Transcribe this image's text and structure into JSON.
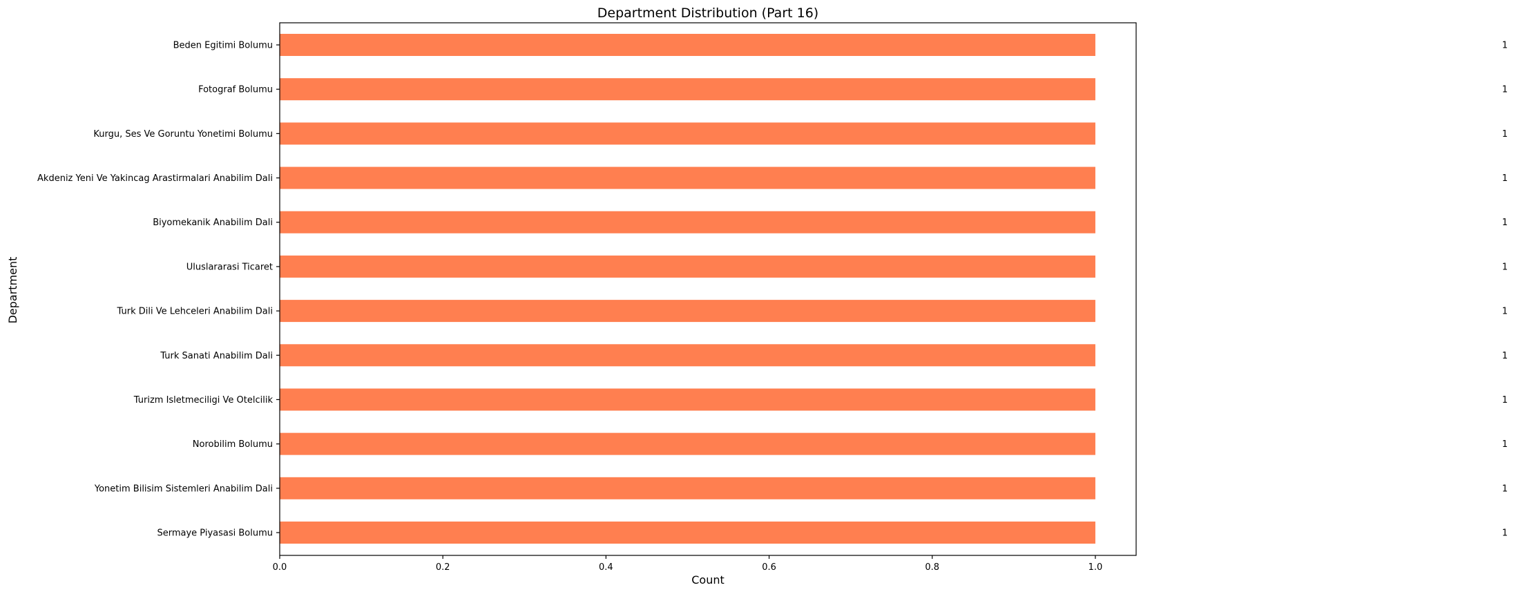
{
  "chart_data": {
    "type": "bar",
    "orientation": "horizontal",
    "title": "Department Distribution (Part 16)",
    "xlabel": "Count",
    "ylabel": "Department",
    "xlim": [
      0,
      1.05
    ],
    "xticks": [
      "0.0",
      "0.2",
      "0.4",
      "0.6",
      "0.8",
      "1.0"
    ],
    "categories": [
      "Beden Egitimi Bolumu",
      "Fotograf Bolumu",
      "Kurgu, Ses Ve Goruntu Yonetimi Bolumu",
      "Akdeniz Yeni Ve Yakincag Arastirmalari Anabilim Dali",
      "Biyomekanik Anabilim Dali",
      "Uluslararasi Ticaret",
      "Turk Dili Ve Lehceleri Anabilim Dali",
      "Turk Sanati Anabilim Dali",
      "Turizm Isletmeciligi Ve Otelcilik",
      "Norobilim Bolumu",
      "Yonetim Bilisim Sistemleri Anabilim Dali",
      "Sermaye Piyasasi Bolumu"
    ],
    "values": [
      1,
      1,
      1,
      1,
      1,
      1,
      1,
      1,
      1,
      1,
      1,
      1
    ],
    "value_labels": [
      "1",
      "1",
      "1",
      "1",
      "1",
      "1",
      "1",
      "1",
      "1",
      "1",
      "1",
      "1"
    ],
    "bar_color": "#ff7f50",
    "grid": false,
    "legend": false
  }
}
